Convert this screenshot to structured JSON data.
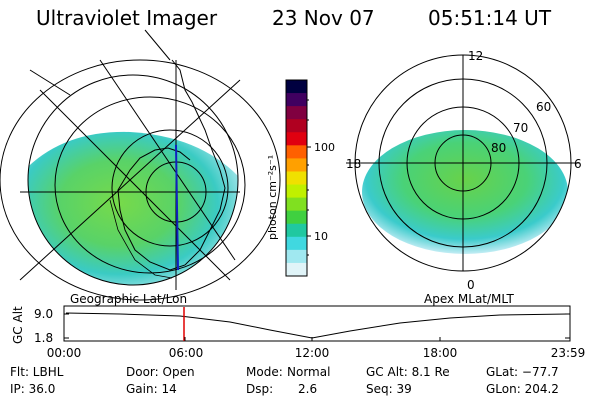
{
  "header": {
    "instrument": "Ultraviolet Imager",
    "date": "23 Nov 07",
    "time": "05:51:14 UT"
  },
  "panels": {
    "left_title": "Geographic Lat/Lon",
    "right_title": "Apex MLat/MLT"
  },
  "colorbar": {
    "unit_label": "photon cm⁻²s⁻¹",
    "ticks": [
      "100",
      "10"
    ],
    "colors": [
      "#000040",
      "#400060",
      "#800040",
      "#b00020",
      "#e00010",
      "#ff6000",
      "#ffa000",
      "#f0e000",
      "#c0f000",
      "#80e020",
      "#40d040",
      "#20c8a0",
      "#40d8e0",
      "#a0e8f0",
      "#e0f4f8"
    ]
  },
  "polar_right": {
    "mlt_labels": [
      "12",
      "18",
      "6",
      "0"
    ],
    "mlat_labels": [
      "60",
      "70",
      "80"
    ]
  },
  "timeline": {
    "ylabel": "GC Alt",
    "yticks": [
      "9.0",
      "1.8"
    ],
    "xticks": [
      "00:00",
      "06:00",
      "12:00",
      "18:00",
      "23:59"
    ],
    "marker_time": "05:51",
    "marker_color": "#e00000"
  },
  "status": {
    "row1": [
      {
        "label": "Flt: LBHL"
      },
      {
        "label": "Door: Open"
      },
      {
        "label": "Mode:",
        "value": "Normal"
      },
      {
        "label": "GC Alt: 8.1 Re"
      },
      {
        "label": "GLat: −77.7"
      }
    ],
    "row2": [
      {
        "label": "IP: 36.0"
      },
      {
        "label": "Gain: 14"
      },
      {
        "label": "Dsp:",
        "value": "2.6"
      },
      {
        "label": "Seq: 39"
      },
      {
        "label": "GLon: 204.2"
      }
    ]
  }
}
